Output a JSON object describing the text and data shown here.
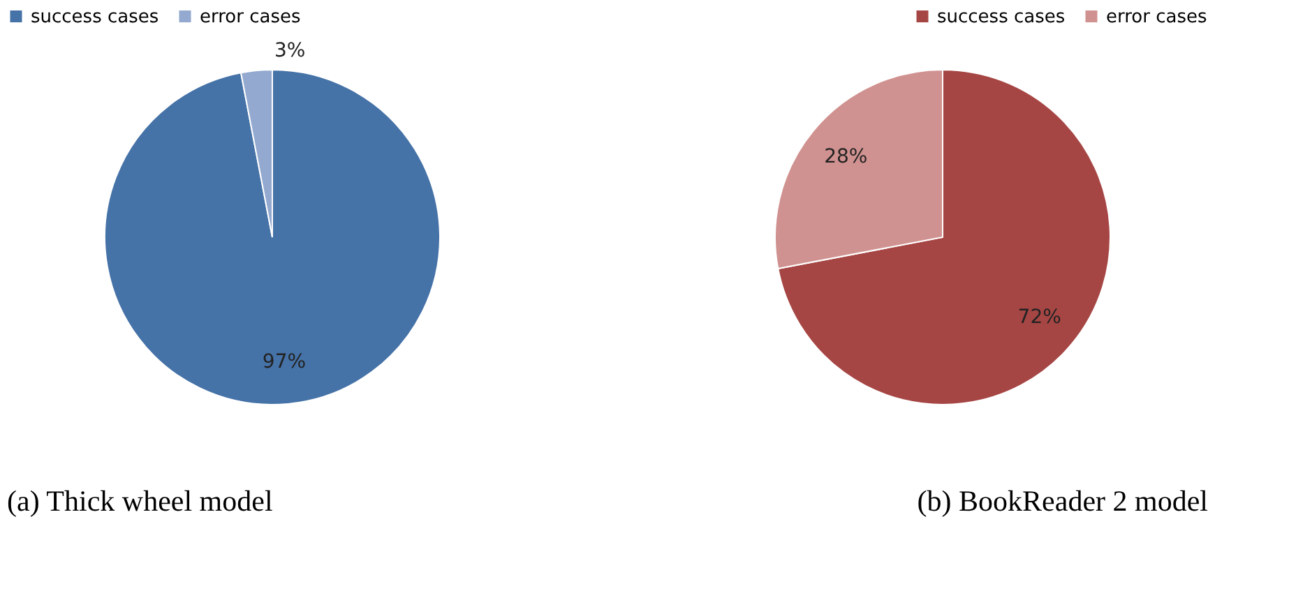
{
  "chart_data": [
    {
      "type": "pie",
      "title": "(a) Thick wheel model",
      "categories": [
        "success cases",
        "error cases"
      ],
      "values": [
        97,
        3
      ],
      "colors": [
        "#4572a7",
        "#93a9cf"
      ],
      "value_labels": [
        "97%",
        "3%"
      ],
      "legend": "top left"
    },
    {
      "type": "pie",
      "title": "(b) BookReader 2 model",
      "categories": [
        "success cases",
        "error cases"
      ],
      "values": [
        72,
        28
      ],
      "colors": [
        "#a64644",
        "#d09290"
      ],
      "value_labels": [
        "72%",
        "28%"
      ],
      "legend": "top right"
    }
  ]
}
